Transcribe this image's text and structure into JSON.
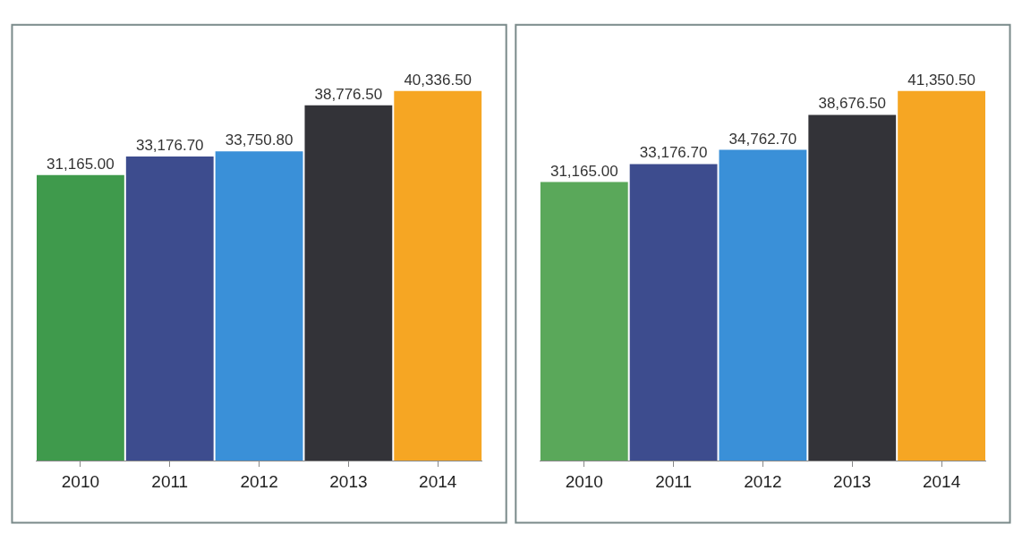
{
  "chart_data": [
    {
      "type": "bar",
      "categories": [
        "2010",
        "2011",
        "2012",
        "2013",
        "2014"
      ],
      "values": [
        31165.0,
        33176.7,
        33750.8,
        38776.5,
        40336.5
      ],
      "value_labels": [
        "31,165.00",
        "33,176.70",
        "33,750.80",
        "38,776.50",
        "40,336.50"
      ],
      "colors": [
        "#3f9a4c",
        "#3d4c8e",
        "#3a90d8",
        "#333338",
        "#f6a623"
      ]
    },
    {
      "type": "bar",
      "categories": [
        "2010",
        "2011",
        "2012",
        "2013",
        "2014"
      ],
      "values": [
        31165.0,
        33176.7,
        34762.7,
        38676.5,
        41350.5
      ],
      "value_labels": [
        "31,165.00",
        "33,176.70",
        "34,762.70",
        "38,676.50",
        "41,350.50"
      ],
      "colors": [
        "#5aa85a",
        "#3d4c8e",
        "#3a90d8",
        "#333338",
        "#f6a623"
      ]
    }
  ]
}
